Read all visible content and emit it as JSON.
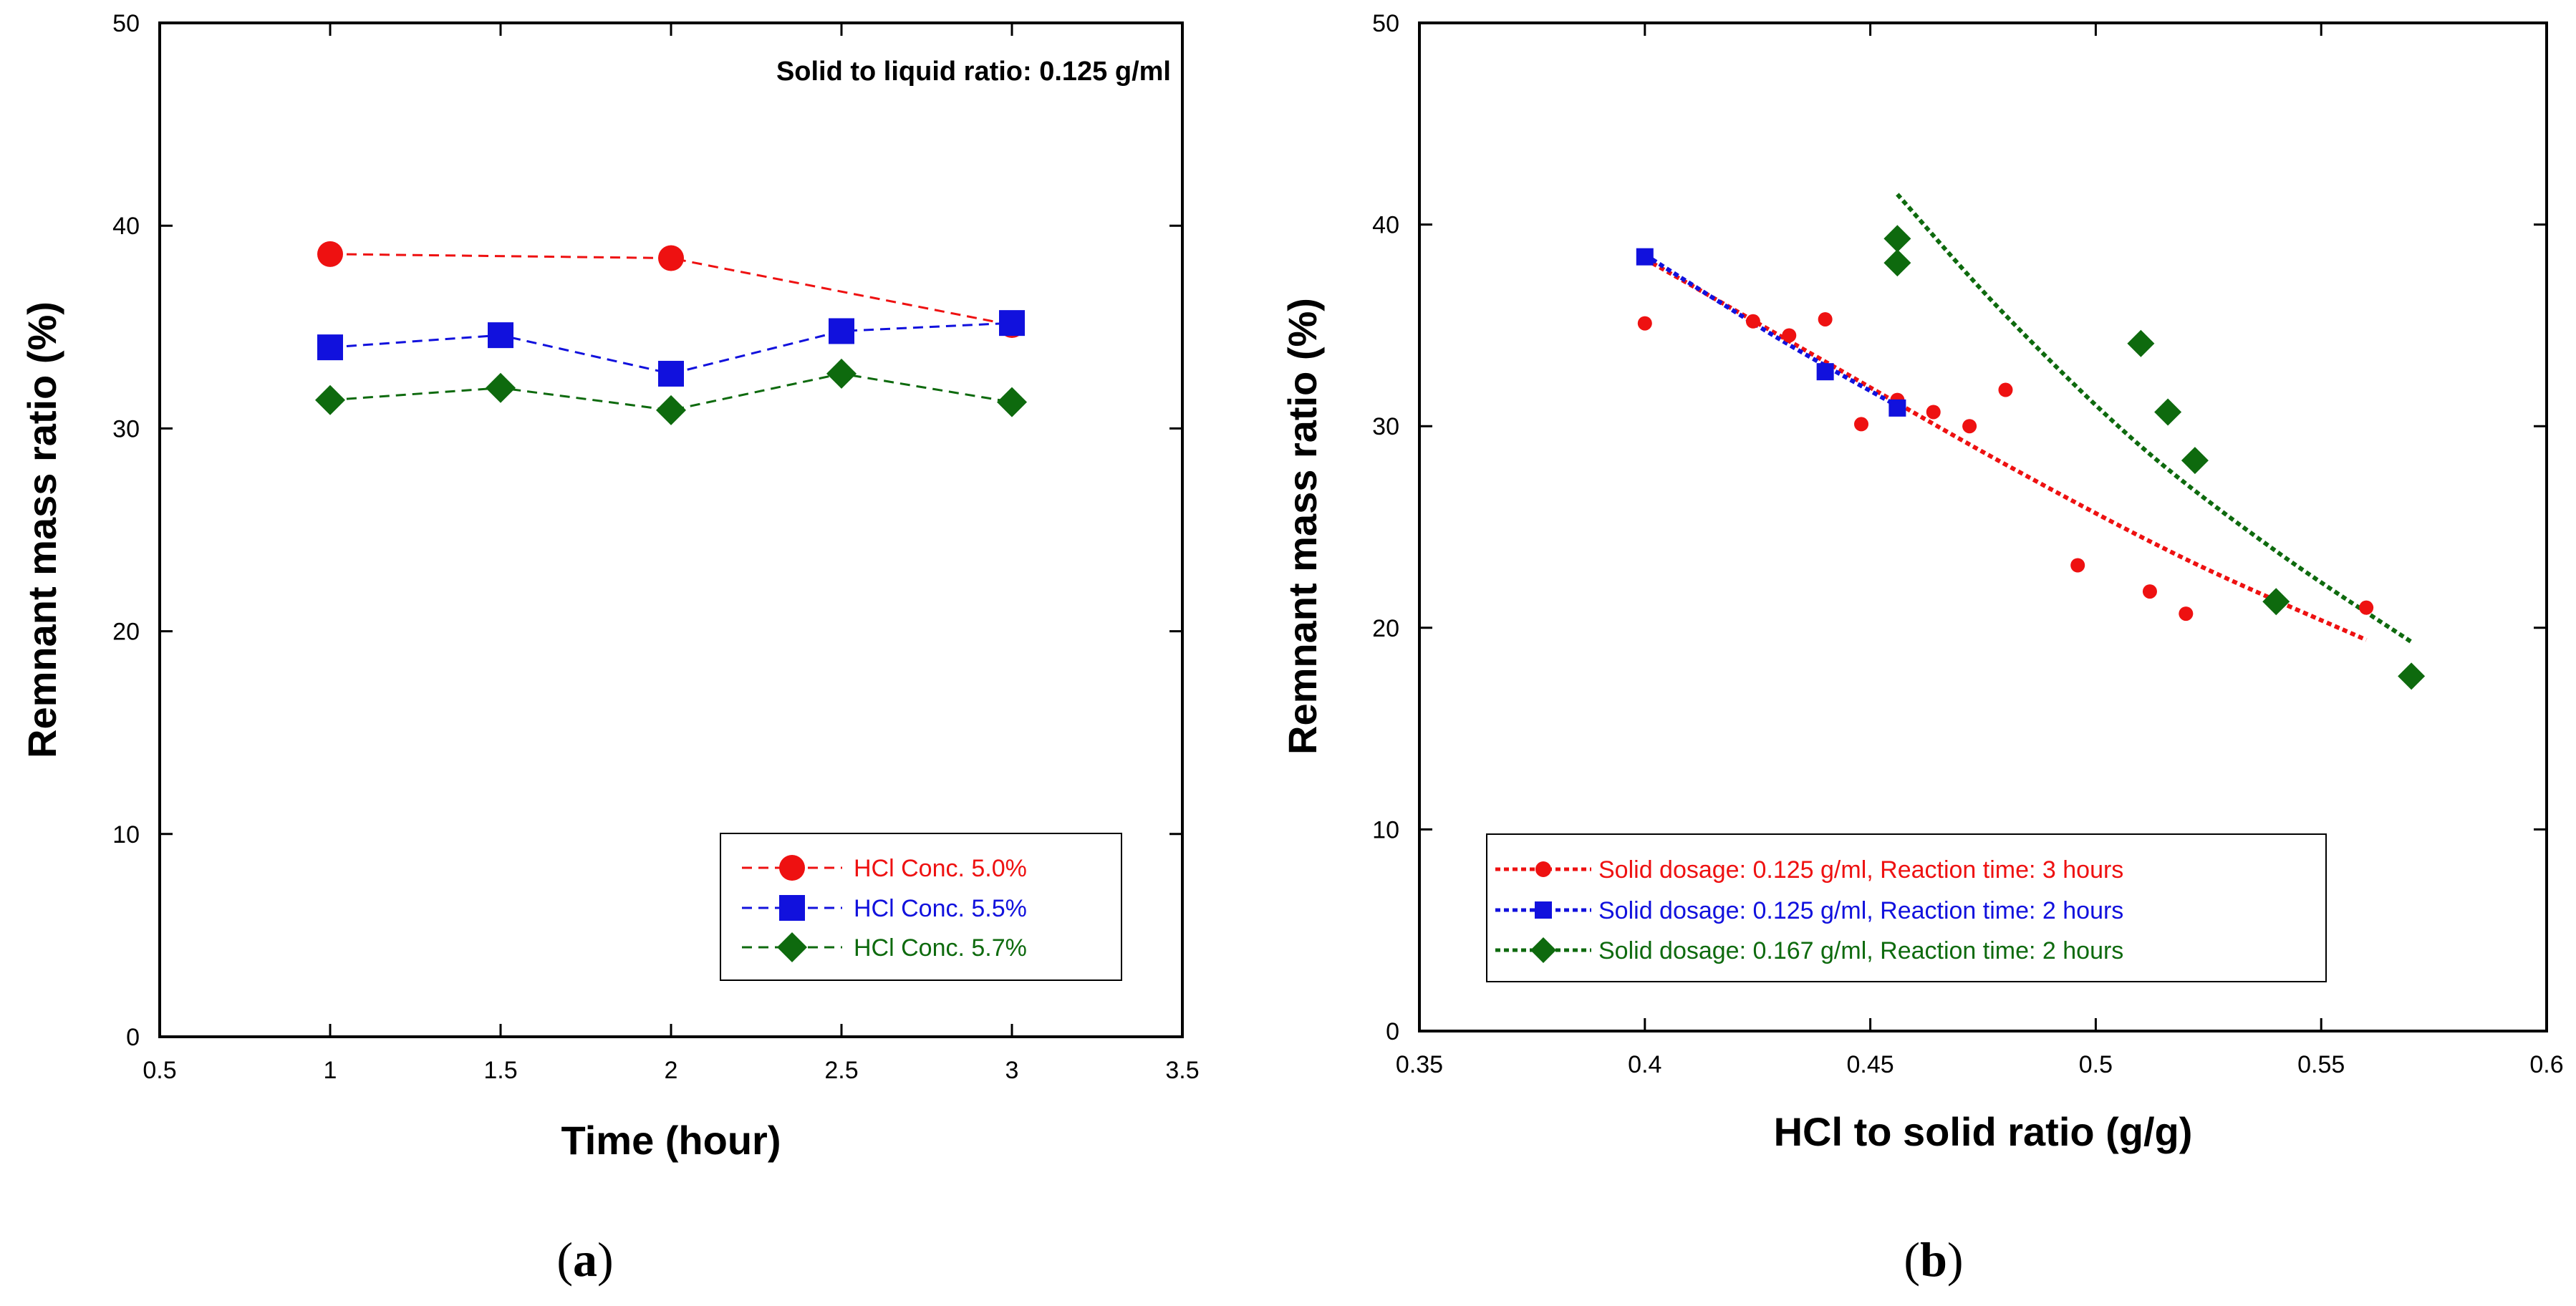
{
  "chart_data": [
    {
      "panel": "a",
      "type": "line",
      "caption_open": "(",
      "caption_letter": "a",
      "caption_close": ")",
      "xlabel": "Time (hour)",
      "ylabel": "Remnant mass ratio (%)",
      "xlim": [
        0.5,
        3.5
      ],
      "ylim": [
        0,
        50
      ],
      "xticks": [
        "0.5",
        "1",
        "1.5",
        "2",
        "2.5",
        "3",
        "3.5"
      ],
      "yticks": [
        "0",
        "10",
        "20",
        "30",
        "40",
        "50"
      ],
      "annotation": "Solid to liquid ratio: 0.125 g/ml",
      "legend_position": "bottom-right",
      "series": [
        {
          "name": "HCl Conc. 5.0%",
          "color": "#ee1111",
          "marker": "circle",
          "x": [
            1,
            2,
            3
          ],
          "y": [
            38.6,
            38.4,
            35.1
          ]
        },
        {
          "name": "HCl Conc. 5.5%",
          "color": "#1111dd",
          "marker": "square",
          "x": [
            1,
            1.5,
            2,
            2.5,
            3
          ],
          "y": [
            34.0,
            34.6,
            32.7,
            34.8,
            35.2
          ]
        },
        {
          "name": "HCl Conc. 5.7%",
          "color": "#0e6a0e",
          "marker": "diamond",
          "x": [
            1,
            1.5,
            2,
            2.5,
            3
          ],
          "y": [
            31.4,
            32.0,
            30.9,
            32.7,
            31.3
          ]
        }
      ]
    },
    {
      "panel": "b",
      "type": "scatter",
      "caption_open": "(",
      "caption_letter": "b",
      "caption_close": ")",
      "xlabel": "HCl to solid ratio (g/g)",
      "ylabel": "Remnant mass ratio (%)",
      "xlim": [
        0.35,
        0.6
      ],
      "ylim": [
        0,
        50
      ],
      "xticks": [
        "0.35",
        "0.4",
        "0.45",
        "0.5",
        "0.55",
        "0.6"
      ],
      "yticks": [
        "0",
        "10",
        "20",
        "30",
        "40",
        "50"
      ],
      "legend_position": "bottom-left",
      "series": [
        {
          "name": "Solid dosage: 0.125 g/ml, Reaction time: 3 hours",
          "color": "#ee1111",
          "marker": "circle",
          "x": [
            0.4,
            0.424,
            0.432,
            0.44,
            0.448,
            0.456,
            0.464,
            0.472,
            0.48,
            0.496,
            0.512,
            0.52,
            0.56
          ],
          "y": [
            35.1,
            35.2,
            34.5,
            35.3,
            30.1,
            31.3,
            30.7,
            30.0,
            31.8,
            23.1,
            21.8,
            20.7,
            21.0
          ],
          "trend": {
            "x": [
              0.4,
              0.44,
              0.48,
              0.52,
              0.56
            ],
            "y": [
              38.3,
              33.2,
              28.1,
              23.4,
              19.4
            ]
          }
        },
        {
          "name": "Solid dosage: 0.125 g/ml, Reaction time: 2 hours",
          "color": "#1111dd",
          "marker": "square",
          "x": [
            0.4,
            0.44,
            0.456
          ],
          "y": [
            38.4,
            32.7,
            30.9
          ],
          "trend": {
            "x": [
              0.4,
              0.43,
              0.456
            ],
            "y": [
              38.5,
              34.3,
              31.0
            ]
          }
        },
        {
          "name": "Solid dosage: 0.167 g/ml, Reaction time: 2 hours",
          "color": "#0e6a0e",
          "marker": "diamond",
          "x": [
            0.456,
            0.456,
            0.51,
            0.516,
            0.522,
            0.54,
            0.57
          ],
          "y": [
            39.3,
            38.1,
            34.1,
            30.7,
            28.3,
            21.3,
            17.6
          ],
          "trend": {
            "x": [
              0.456,
              0.48,
              0.51,
              0.54,
              0.57
            ],
            "y": [
              41.5,
              35.5,
              29.0,
              23.8,
              19.3
            ]
          }
        }
      ]
    }
  ]
}
